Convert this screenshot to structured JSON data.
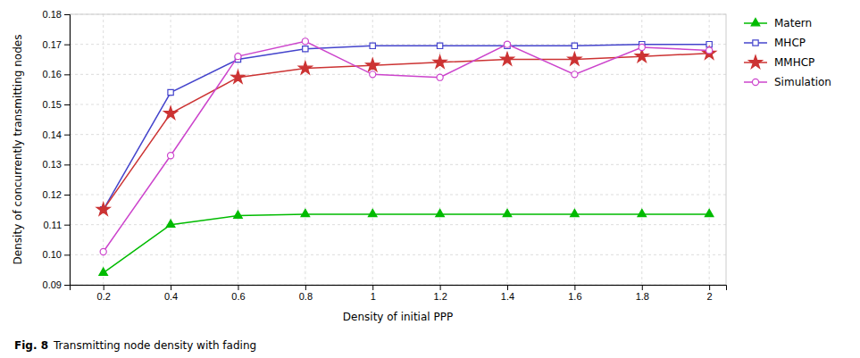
{
  "chart_data": {
    "type": "line",
    "title": "Fig. 8",
    "subtitle": "Transmitting node density with fading",
    "x_label": "Density of initial PPP",
    "y_label": "Density of concurrently transmitting nodes",
    "x": [
      0.2,
      0.4,
      0.6,
      0.8,
      1.0,
      1.2,
      1.4,
      1.6,
      1.8,
      2.0
    ],
    "series": [
      {
        "name": "Matern",
        "color": "#00bb00",
        "marker": "triangle",
        "line_style": "solid",
        "values": [
          0.094,
          0.11,
          0.113,
          0.1135,
          0.1135,
          0.1135,
          0.1135,
          0.1135,
          0.1135,
          0.1135
        ]
      },
      {
        "name": "MHCP",
        "color": "#4444cc",
        "marker": "square-open",
        "line_style": "solid",
        "values": [
          0.115,
          0.154,
          0.165,
          0.1685,
          0.1695,
          0.1695,
          0.1695,
          0.1695,
          0.17,
          0.17
        ]
      },
      {
        "name": "MMHCP",
        "color": "#cc3333",
        "marker": "star",
        "line_style": "solid",
        "values": [
          0.115,
          0.147,
          0.159,
          0.162,
          0.163,
          0.164,
          0.165,
          0.165,
          0.166,
          0.167
        ]
      },
      {
        "name": "Simulation",
        "color": "#cc44cc",
        "marker": "circle-open",
        "line_style": "solid",
        "values": [
          0.101,
          0.133,
          0.166,
          0.171,
          0.16,
          0.159,
          0.17,
          0.16,
          0.169,
          0.168
        ]
      }
    ],
    "xlim": [
      0.1,
      2.05
    ],
    "ylim": [
      0.09,
      0.18
    ],
    "xticks": [
      0.2,
      0.4,
      0.6,
      0.8,
      1,
      1.2,
      1.4,
      1.6,
      1.8,
      2
    ],
    "yticks": [
      0.09,
      {
        "value": 0.1,
        "label": "0.10"
      },
      0.11,
      0.12,
      0.13,
      0.14,
      0.15,
      0.16,
      0.17,
      0.18
    ],
    "grid": true,
    "legend": "right"
  }
}
